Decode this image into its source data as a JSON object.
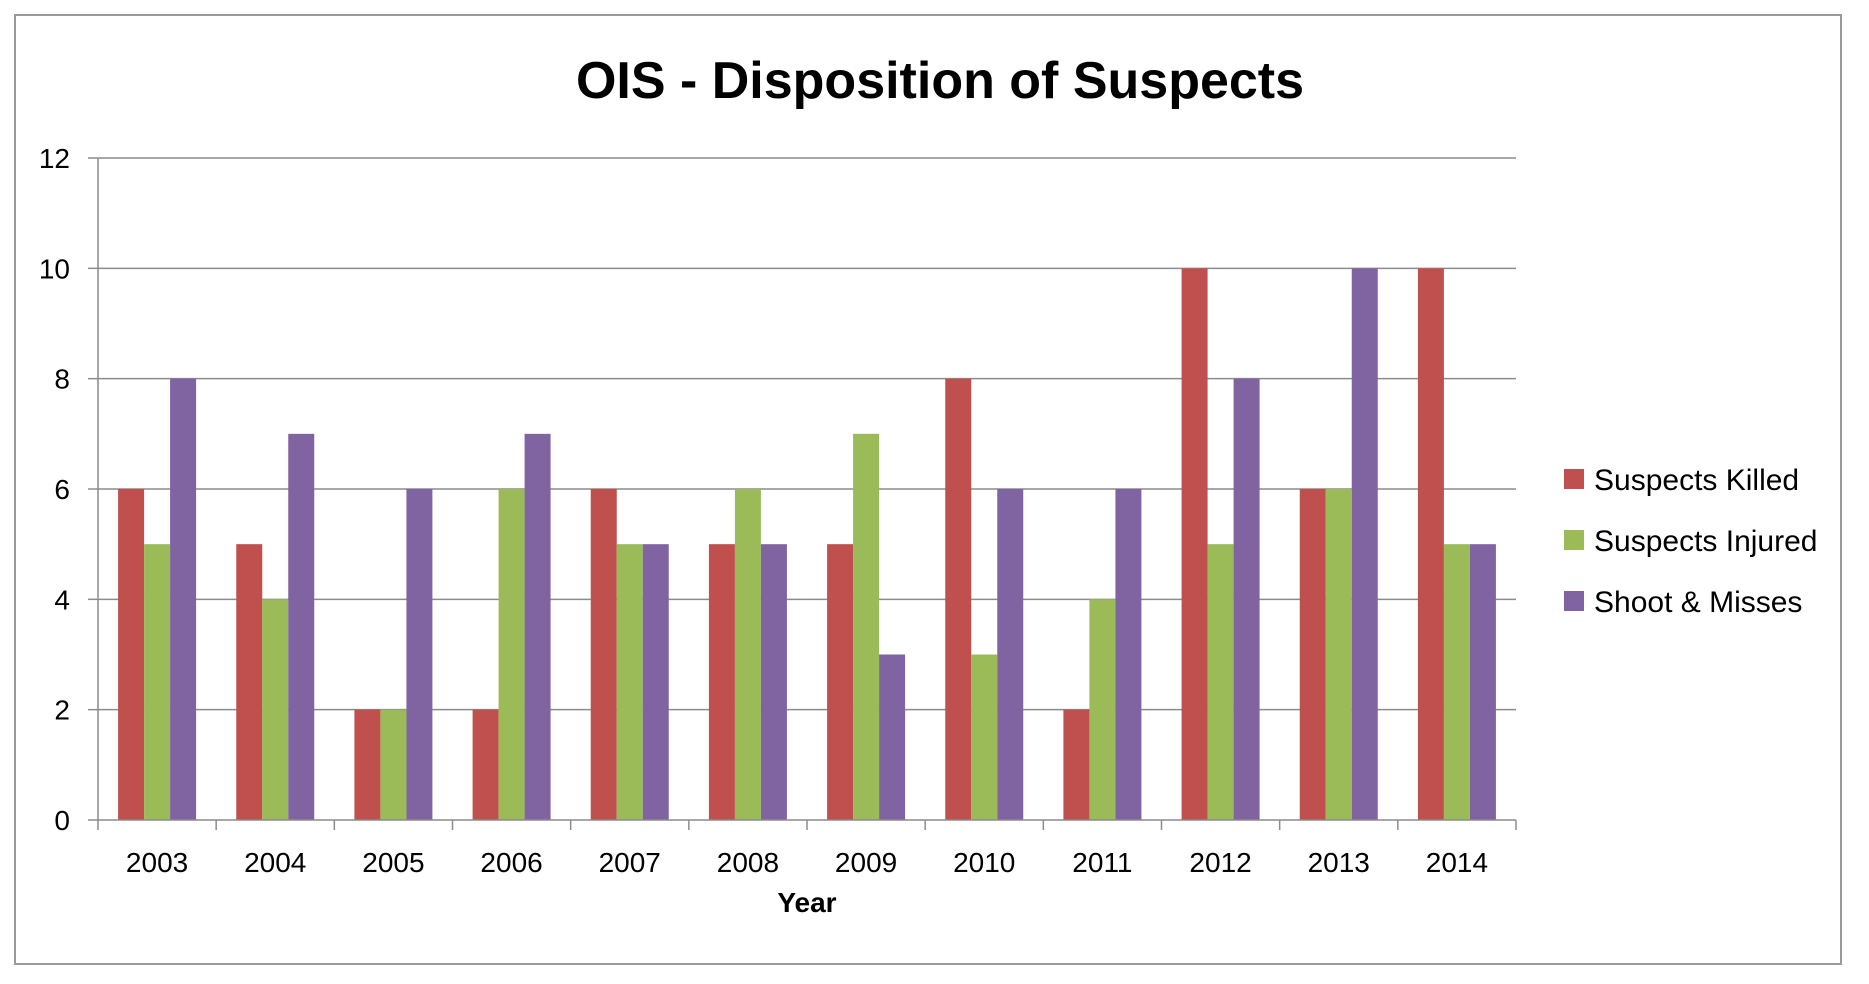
{
  "chart_data": {
    "type": "bar",
    "title": "OIS - Disposition of Suspects",
    "xlabel": "Year",
    "ylabel": "",
    "categories": [
      "2003",
      "2004",
      "2005",
      "2006",
      "2007",
      "2008",
      "2009",
      "2010",
      "2011",
      "2012",
      "2013",
      "2014"
    ],
    "series": [
      {
        "name": "Suspects Killed",
        "color": "#c0504d",
        "values": [
          6,
          5,
          2,
          2,
          6,
          5,
          5,
          8,
          2,
          10,
          6,
          10
        ]
      },
      {
        "name": "Suspects Injured",
        "color": "#9bbb59",
        "values": [
          5,
          4,
          2,
          6,
          5,
          6,
          7,
          3,
          4,
          5,
          6,
          5
        ]
      },
      {
        "name": "Shoot & Misses",
        "color": "#8064a2",
        "values": [
          8,
          7,
          6,
          7,
          5,
          5,
          3,
          6,
          6,
          8,
          10,
          5
        ]
      }
    ],
    "ylim": [
      0,
      12
    ],
    "yticks": [
      0,
      2,
      4,
      6,
      8,
      10,
      12
    ],
    "grid": true,
    "legend": "right"
  }
}
